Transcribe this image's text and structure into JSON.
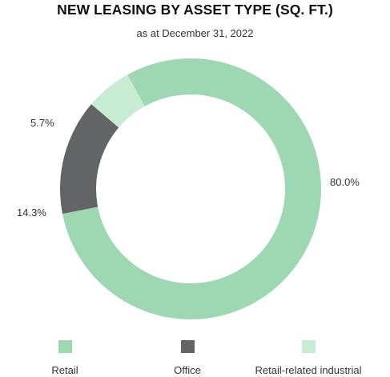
{
  "chart_data": {
    "type": "pie",
    "title": "NEW LEASING BY ASSET TYPE (SQ. FT.)",
    "subtitle": "as at December 31, 2022",
    "categories": [
      "Retail",
      "Office",
      "Retail-related industrial"
    ],
    "values": [
      80.0,
      14.3,
      5.7
    ],
    "value_labels": [
      "80.0%",
      "14.3%",
      "5.7%"
    ],
    "colors": [
      "#9dd8b3",
      "#636466",
      "#c8ebd4"
    ],
    "donut": true,
    "legend_position": "bottom"
  }
}
